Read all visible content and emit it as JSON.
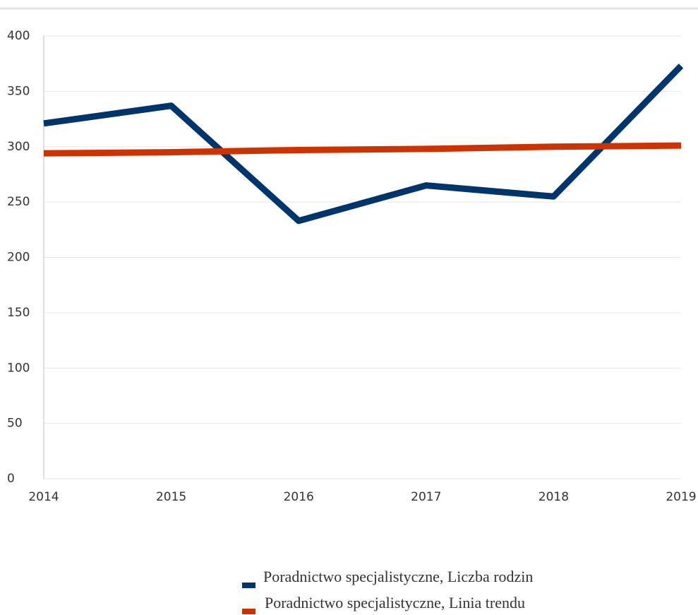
{
  "chart_data": {
    "type": "line",
    "categories": [
      "2014",
      "2015",
      "2016",
      "2017",
      "2018",
      "2019"
    ],
    "series": [
      {
        "name": "Poradnictwo specjalistyczne, Liczba rodzin",
        "color": "#00356b",
        "values": [
          321,
          337,
          233,
          265,
          255,
          373
        ]
      },
      {
        "name": "Poradnictwo specjalistyczne, Linia trendu",
        "color": "#cc3300",
        "values": [
          294,
          295,
          297,
          298,
          300,
          301
        ]
      }
    ],
    "ylim": [
      0,
      400
    ],
    "yticks": [
      0,
      50,
      100,
      150,
      200,
      250,
      300,
      350,
      400
    ],
    "grid": true,
    "legend": "bottom"
  }
}
